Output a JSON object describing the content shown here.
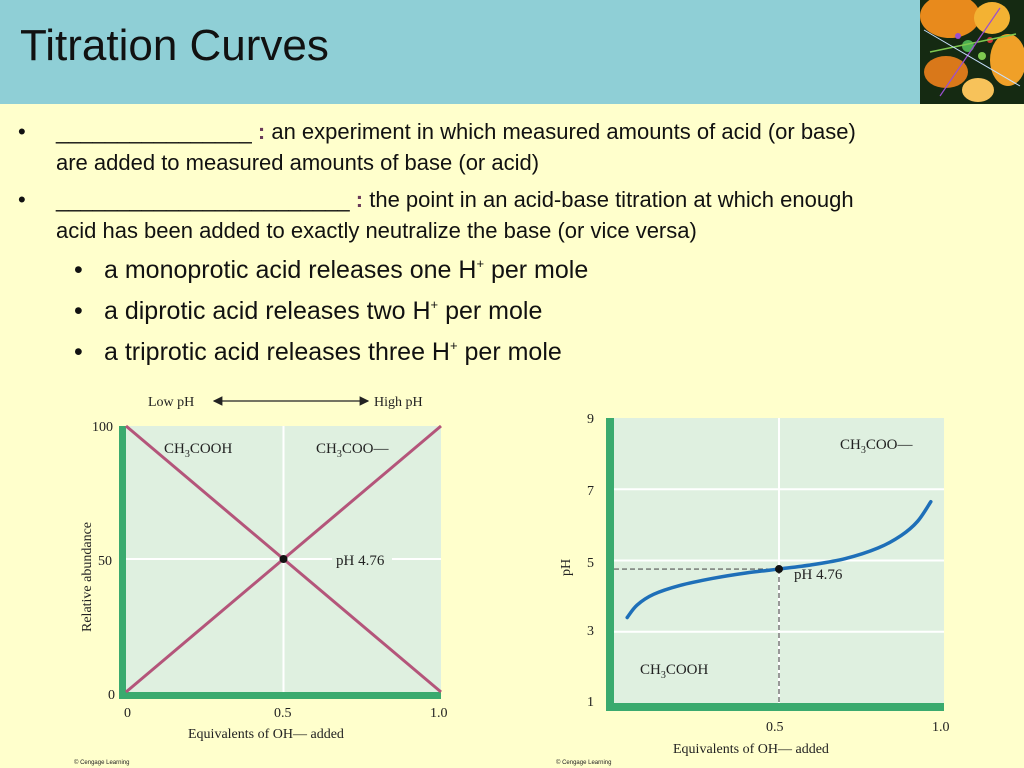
{
  "slide": {
    "title": "Titration Curves"
  },
  "bullets": [
    {
      "blank": "________________",
      "colon": ":",
      "line1": "an experiment in which measured amounts of acid (or base)",
      "line2": "are added to measured amounts of base (or acid)"
    },
    {
      "blank": "________________________",
      "colon": ":",
      "line1": "the point in an acid-base titration at which enough",
      "line2": "acid has been added to exactly neutralize the base (or vice versa)"
    }
  ],
  "sub_bullets": [
    {
      "pre": "a monoprotic acid releases one H",
      "sup": "+",
      "post": " per mole"
    },
    {
      "pre": "a diprotic acid releases two H",
      "sup": "+",
      "post": " per mole"
    },
    {
      "pre": "a triprotic acid releases three H",
      "sup": "+",
      "post": " per mole"
    }
  ],
  "chart_data": [
    {
      "type": "line",
      "arrow_left": "Low pH",
      "arrow_right": "High pH",
      "xlabel": "Equivalents of OH— added",
      "ylabel": "Relative abundance",
      "xlim": [
        0,
        1.0
      ],
      "ylim": [
        0,
        100
      ],
      "x_ticks": [
        "0",
        "0.5",
        "1.0"
      ],
      "y_ticks": [
        "100",
        "50",
        "0"
      ],
      "region_labels": {
        "acid": "CH3COOH",
        "base": "CH3COO—"
      },
      "annotation": "pH 4.76",
      "series": [
        {
          "x": [
            0,
            1.0
          ],
          "y": [
            100,
            0
          ]
        },
        {
          "x": [
            0,
            1.0
          ],
          "y": [
            0,
            100
          ]
        }
      ],
      "marker": {
        "x": 0.5,
        "y": 50
      },
      "line_color": "#b4557a",
      "plot_bg": "#dff0e0",
      "axis_bar_color": "#3aaa6e",
      "credit": "© Cengage Learning"
    },
    {
      "type": "line",
      "xlabel": "Equivalents of OH— added",
      "ylabel": "pH",
      "xlim": [
        0,
        1.0
      ],
      "ylim": [
        1,
        9
      ],
      "x_ticks": [
        "0.5",
        "1.0"
      ],
      "y_ticks": [
        "9",
        "7",
        "5",
        "3",
        "1"
      ],
      "region_labels": {
        "acid": "CH3COOH",
        "base": "CH3COO—"
      },
      "annotation": "pH 4.76",
      "series": [
        {
          "x": [
            0.04,
            0.07,
            0.12,
            0.2,
            0.3,
            0.4,
            0.5,
            0.6,
            0.7,
            0.8,
            0.87,
            0.92,
            0.96
          ],
          "y": [
            3.4,
            3.75,
            4.05,
            4.3,
            4.5,
            4.65,
            4.76,
            4.88,
            5.05,
            5.35,
            5.7,
            6.1,
            6.65
          ]
        }
      ],
      "marker": {
        "x": 0.5,
        "y": 4.76
      },
      "line_color": "#1e6fb8",
      "plot_bg": "#dff0e0",
      "axis_bar_color": "#3aaa6e",
      "credit": "© Cengage Learning"
    }
  ]
}
